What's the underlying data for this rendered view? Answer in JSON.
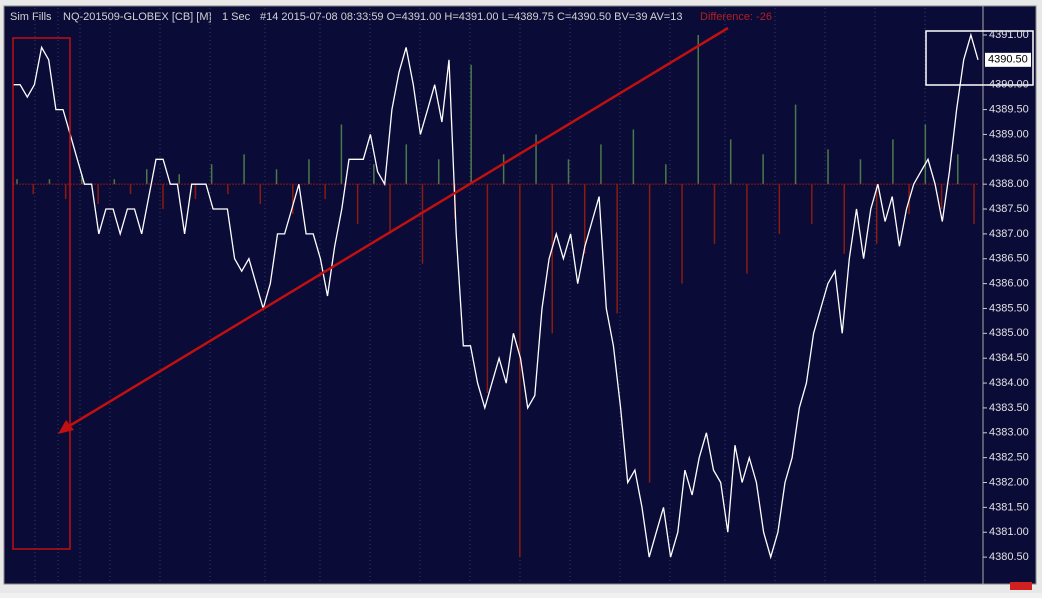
{
  "chart_data": {
    "type": "line",
    "title": "Sim Fills",
    "instrument": "NQ-201509-GLOBEX [CB] [M]",
    "interval": "1 Sec",
    "info": "#14 2015-07-08 08:33:59 O=4391.00 H=4391.00 L=4389.75 C=4390.50 BV=39 AV=13",
    "difference": "Difference: -26",
    "last_label": "4390.50",
    "ylim": [
      4380.1,
      4391.45
    ],
    "yticks": [
      {
        "value": 4380.5,
        "label": "4380.50"
      },
      {
        "value": 4381,
        "label": "4381.00"
      },
      {
        "value": 4381.5,
        "label": "4381.50"
      },
      {
        "value": 4382,
        "label": "4382.00"
      },
      {
        "value": 4382.5,
        "label": "4382.50"
      },
      {
        "value": 4383,
        "label": "4383.00"
      },
      {
        "value": 4383.5,
        "label": "4383.50"
      },
      {
        "value": 4384,
        "label": "4384.00"
      },
      {
        "value": 4384.5,
        "label": "4384.50"
      },
      {
        "value": 4385,
        "label": "4385.00"
      },
      {
        "value": 4385.5,
        "label": "4385.50"
      },
      {
        "value": 4386,
        "label": "4386.00"
      },
      {
        "value": 4386.5,
        "label": "4386.50"
      },
      {
        "value": 4387,
        "label": "4387.00"
      },
      {
        "value": 4387.5,
        "label": "4387.50"
      },
      {
        "value": 4388,
        "label": "4388.00"
      },
      {
        "value": 4388.5,
        "label": "4388.50"
      },
      {
        "value": 4389,
        "label": "4389.00"
      },
      {
        "value": 4389.5,
        "label": "4389.50"
      },
      {
        "value": 4390,
        "label": "4390.00"
      },
      {
        "value": 4391,
        "label": "4391.00"
      }
    ],
    "series": [
      {
        "color": "#ffffff",
        "values": [
          4390,
          4390,
          4389.75,
          4390,
          4390.75,
          4390.5,
          4389.5,
          4389.5,
          4389,
          4388.5,
          4388,
          4388,
          4387,
          4387.5,
          4387.5,
          4387,
          4387.5,
          4387.5,
          4387,
          4387.75,
          4388.5,
          4388.5,
          4388,
          4388,
          4387,
          4388,
          4388,
          4388,
          4387.5,
          4387.5,
          4387.5,
          4386.5,
          4386.25,
          4386.5,
          4386,
          4385.5,
          4386,
          4387,
          4387,
          4387.5,
          4388,
          4387,
          4387,
          4386.5,
          4385.75,
          4386.75,
          4387.5,
          4388.5,
          4388.5,
          4388.5,
          4389,
          4388.25,
          4388,
          4389.5,
          4390.25,
          4390.75,
          4390,
          4389,
          4389.5,
          4390,
          4389.25,
          4390.5,
          4387,
          4384.75,
          4384.75,
          4384,
          4383.5,
          4384,
          4384.5,
          4384,
          4385,
          4384.5,
          4383.5,
          4383.75,
          4385.5,
          4386.5,
          4387,
          4386.5,
          4387,
          4386,
          4386.75,
          4387.25,
          4387.75,
          4385.5,
          4384.75,
          4383.5,
          4382,
          4382.25,
          4381.5,
          4380.5,
          4381,
          4381.5,
          4380.5,
          4381,
          4382.25,
          4381.75,
          4382.5,
          4383,
          4382.25,
          4382,
          4381,
          4382.75,
          4382,
          4382.5,
          4382,
          4381,
          4380.5,
          4381,
          4382,
          4382.5,
          4383.5,
          4384,
          4385,
          4385.5,
          4386,
          4386.25,
          4385,
          4386.5,
          4387.5,
          4386.5,
          4387.5,
          4388,
          4387.25,
          4387.75,
          4386.75,
          4387.5,
          4388,
          4388.25,
          4388.5,
          4388,
          4387.25,
          4388.25,
          4389.5,
          4390.5,
          4391,
          4390.5
        ]
      }
    ],
    "bars": {
      "base": 4388,
      "up_color": "#4a7a4a",
      "down_color": "#8b1a10",
      "values": [
        0.1,
        -0.2,
        0.1,
        -0.3,
        0.2,
        -0.4,
        0.1,
        -0.2,
        0.3,
        -0.5,
        0.2,
        -0.3,
        0.4,
        -0.2,
        0.6,
        -0.4,
        0.3,
        -0.6,
        0.5,
        -0.3,
        1.2,
        -0.8,
        0.4,
        -1.0,
        0.8,
        -1.6,
        0.5,
        -0.7,
        2.4,
        -4.2,
        0.6,
        -7.5,
        1.0,
        -3.0,
        0.5,
        -1.4,
        0.8,
        -2.6,
        1.1,
        -6.0,
        0.4,
        -2.0,
        3.0,
        -1.2,
        0.9,
        -1.8,
        0.6,
        -1.0,
        1.6,
        -0.8,
        0.7,
        -1.4,
        0.5,
        -1.2,
        0.9,
        -0.6,
        1.2,
        -0.5,
        0.6,
        -0.8
      ]
    }
  }
}
